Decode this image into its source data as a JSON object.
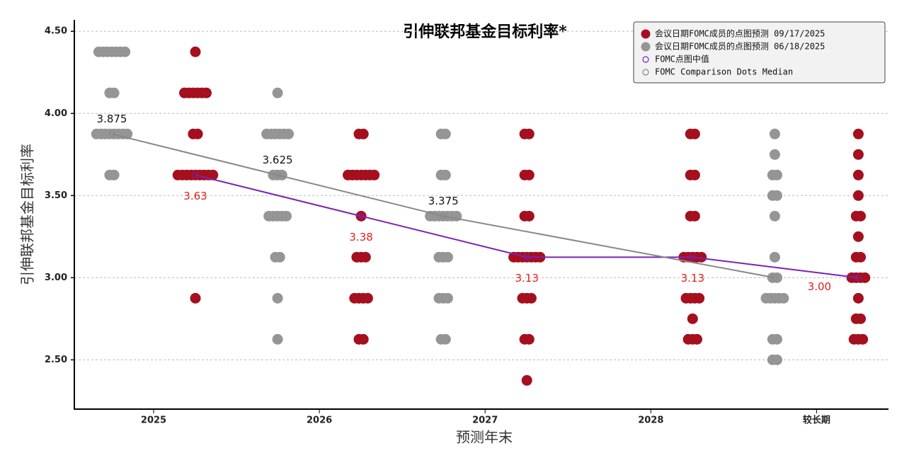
{
  "chart_data": {
    "type": "dot",
    "title": "引伸联邦基金目标利率*",
    "x_label": "预测年末",
    "y_label": "引伸联邦基金目标利率",
    "categories": [
      "2025",
      "2026",
      "2027",
      "2028",
      "较长期"
    ],
    "ylim": [
      2.2,
      4.57
    ],
    "yticks": [
      {
        "value": 2.5,
        "label": "2.50"
      },
      {
        "value": 3,
        "label": "3.00"
      },
      {
        "value": 3.5,
        "label": "3.50"
      },
      {
        "value": 4,
        "label": "4.00"
      },
      {
        "value": 4.5,
        "label": "4.50"
      }
    ],
    "grid": true,
    "legend": "upper right",
    "series": [
      {
        "name": "会议日期FOMC成员的点图预测 09/17/2025",
        "color": "#a50f1e",
        "offset": "right",
        "dots": [
          [
            {
              "rate": 4.375,
              "count": 1
            },
            {
              "rate": 4.125,
              "count": 6
            },
            {
              "rate": 3.875,
              "count": 2
            },
            {
              "rate": 3.625,
              "count": 9
            },
            {
              "rate": 2.875,
              "count": 1
            }
          ],
          [
            {
              "rate": 3.875,
              "count": 2
            },
            {
              "rate": 3.625,
              "count": 7
            },
            {
              "rate": 3.375,
              "count": 1
            },
            {
              "rate": 3.125,
              "count": 3
            },
            {
              "rate": 2.875,
              "count": 4
            },
            {
              "rate": 2.625,
              "count": 2
            }
          ],
          [
            {
              "rate": 3.875,
              "count": 2
            },
            {
              "rate": 3.625,
              "count": 2
            },
            {
              "rate": 3.375,
              "count": 2
            },
            {
              "rate": 3.125,
              "count": 7
            },
            {
              "rate": 2.875,
              "count": 3
            },
            {
              "rate": 2.625,
              "count": 2
            },
            {
              "rate": 2.375,
              "count": 1
            }
          ],
          [
            {
              "rate": 3.875,
              "count": 2
            },
            {
              "rate": 3.625,
              "count": 2
            },
            {
              "rate": 3.375,
              "count": 2
            },
            {
              "rate": 3.125,
              "count": 5
            },
            {
              "rate": 2.875,
              "count": 4
            },
            {
              "rate": 2.75,
              "count": 1
            },
            {
              "rate": 2.625,
              "count": 3
            }
          ],
          [
            {
              "rate": 3.875,
              "count": 1
            },
            {
              "rate": 3.75,
              "count": 1
            },
            {
              "rate": 3.625,
              "count": 1
            },
            {
              "rate": 3.5,
              "count": 1
            },
            {
              "rate": 3.375,
              "count": 2
            },
            {
              "rate": 3.25,
              "count": 1
            },
            {
              "rate": 3.125,
              "count": 2
            },
            {
              "rate": 3.0,
              "count": 4
            },
            {
              "rate": 2.875,
              "count": 1
            },
            {
              "rate": 2.75,
              "count": 2
            },
            {
              "rate": 2.625,
              "count": 3
            }
          ]
        ]
      },
      {
        "name": "会议日期FOMC成员的点图预测 06/18/2025",
        "color": "#959595",
        "offset": "left",
        "dots": [
          [
            {
              "rate": 4.375,
              "count": 7
            },
            {
              "rate": 4.125,
              "count": 2
            },
            {
              "rate": 3.875,
              "count": 8
            },
            {
              "rate": 3.625,
              "count": 2
            }
          ],
          [
            {
              "rate": 4.125,
              "count": 1
            },
            {
              "rate": 3.875,
              "count": 6
            },
            {
              "rate": 3.625,
              "count": 3
            },
            {
              "rate": 3.375,
              "count": 5
            },
            {
              "rate": 3.125,
              "count": 2
            },
            {
              "rate": 2.875,
              "count": 1
            },
            {
              "rate": 2.625,
              "count": 1
            }
          ],
          [
            {
              "rate": 3.875,
              "count": 2
            },
            {
              "rate": 3.625,
              "count": 2
            },
            {
              "rate": 3.375,
              "count": 7
            },
            {
              "rate": 3.125,
              "count": 3
            },
            {
              "rate": 2.875,
              "count": 3
            },
            {
              "rate": 2.625,
              "count": 2
            }
          ],
          null,
          [
            {
              "rate": 3.875,
              "count": 1
            },
            {
              "rate": 3.75,
              "count": 1
            },
            {
              "rate": 3.625,
              "count": 2
            },
            {
              "rate": 3.5,
              "count": 2
            },
            {
              "rate": 3.375,
              "count": 1
            },
            {
              "rate": 3.125,
              "count": 1
            },
            {
              "rate": 3.0,
              "count": 2
            },
            {
              "rate": 2.875,
              "count": 5
            },
            {
              "rate": 2.625,
              "count": 2
            },
            {
              "rate": 2.5,
              "count": 2
            }
          ]
        ]
      }
    ],
    "medians": [
      {
        "name": "FOMC点图中值",
        "color": "#7b22b4",
        "label_color": "#e0201b",
        "offset": "right",
        "label_side": "below",
        "categories": [
          "2025",
          "2026",
          "2027",
          "2028",
          "较长期"
        ],
        "values": [
          3.625,
          3.375,
          3.125,
          3.125,
          3.0
        ],
        "value_labels": [
          "3.63",
          "3.38",
          "3.13",
          "3.13",
          "3.00"
        ]
      },
      {
        "name": "FOMC Comparison Dots Median",
        "color": "#888888",
        "label_color": "#111111",
        "offset": "left",
        "label_side": "above",
        "categories": [
          "2025",
          "2026",
          "2027",
          "较长期"
        ],
        "values": [
          3.875,
          3.625,
          3.375,
          3.0
        ],
        "value_labels": [
          "3.875",
          "3.625",
          "3.375",
          null
        ]
      }
    ]
  }
}
